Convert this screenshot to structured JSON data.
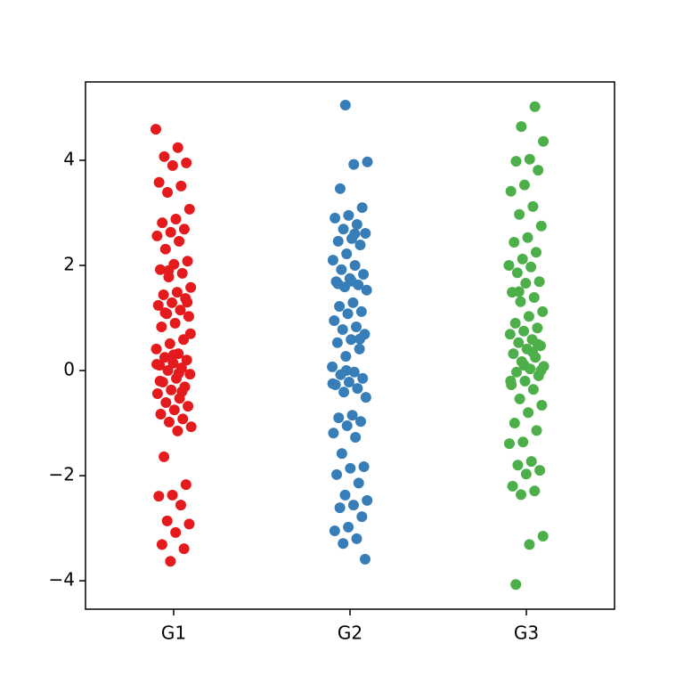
{
  "chart_data": {
    "type": "strip",
    "categories": [
      "G1",
      "G2",
      "G3"
    ],
    "series": [
      {
        "name": "G1",
        "color": "#e41a1c",
        "values": [
          4.59,
          4.24,
          4.07,
          3.95,
          3.9,
          3.58,
          3.51,
          3.39,
          3.07,
          2.88,
          2.81,
          2.69,
          2.63,
          2.56,
          2.46,
          2.31,
          2.08,
          2.02,
          1.92,
          1.85,
          1.78,
          1.58,
          1.49,
          1.44,
          1.37,
          1.29,
          1.24,
          1.15,
          1.08,
          1.03,
          0.9,
          0.83,
          0.59,
          0.51,
          0.41,
          0.32,
          0.25,
          0.2,
          0.14,
          0.1,
          0.05,
          0,
          -0.07,
          -0.15,
          -0.22,
          -0.31,
          -0.37,
          -0.44,
          -0.53,
          -0.61,
          -0.68,
          -0.75,
          -0.83,
          -0.92,
          -0.98,
          -1.07,
          -1.15,
          -1.64,
          -2.17,
          -2.37,
          -2.39,
          -2.56,
          -2.86,
          -2.92,
          -3.08,
          -3.31,
          -3.39,
          -3.63,
          0.12,
          -0.05,
          1.1,
          1.3,
          0.3,
          -0.2,
          -0.4,
          1.9,
          0.7
        ]
      },
      {
        "name": "G2",
        "color": "#377eb8",
        "values": [
          5.05,
          3.97,
          3.92,
          3.46,
          3.1,
          2.95,
          2.9,
          2.78,
          2.69,
          2.61,
          2.51,
          2.46,
          2.39,
          2.22,
          2.1,
          2.0,
          1.92,
          1.83,
          1.75,
          1.69,
          1.63,
          1.59,
          1.53,
          1.29,
          1.22,
          1.12,
          1.08,
          0.95,
          0.83,
          0.78,
          0.69,
          0.59,
          0.53,
          0.41,
          0.27,
          0.07,
          -0.03,
          -0.08,
          -0.15,
          -0.22,
          -0.27,
          -0.34,
          -0.41,
          -0.51,
          -0.85,
          -0.9,
          -0.97,
          -1.05,
          -1.19,
          -1.27,
          -1.58,
          -1.83,
          -1.86,
          -1.98,
          -2.14,
          -2.37,
          -2.47,
          -2.56,
          -2.61,
          -2.78,
          -2.98,
          -3.05,
          -3.2,
          -3.29,
          -3.59,
          1.7,
          1.65,
          0.6,
          0.0,
          -0.25,
          2.6
        ]
      },
      {
        "name": "G3",
        "color": "#4daf4a",
        "values": [
          5.02,
          4.64,
          4.36,
          4.02,
          3.98,
          3.81,
          3.53,
          3.41,
          3.12,
          2.97,
          2.75,
          2.53,
          2.44,
          2.25,
          2.12,
          2.0,
          1.97,
          1.86,
          1.69,
          1.66,
          1.49,
          1.39,
          1.31,
          1.12,
          1.03,
          0.9,
          0.81,
          0.75,
          0.69,
          0.59,
          0.53,
          0.47,
          0.41,
          0.32,
          0.25,
          0.17,
          0.08,
          0.03,
          -0.03,
          -0.1,
          -0.2,
          -0.27,
          -0.36,
          -0.54,
          -0.66,
          -0.8,
          -1.0,
          -1.14,
          -1.36,
          -1.39,
          -1.73,
          -1.8,
          -1.9,
          -1.97,
          -2.2,
          -2.29,
          -2.36,
          -3.15,
          -3.31,
          -4.07,
          0.5,
          0.1,
          -0.2,
          0.35,
          1.5,
          0.0
        ]
      }
    ],
    "ylim": [
      -4.54,
      5.49
    ],
    "yticks": [
      {
        "value": -4,
        "label": "−4"
      },
      {
        "value": -2,
        "label": "−2"
      },
      0,
      2,
      4
    ]
  }
}
